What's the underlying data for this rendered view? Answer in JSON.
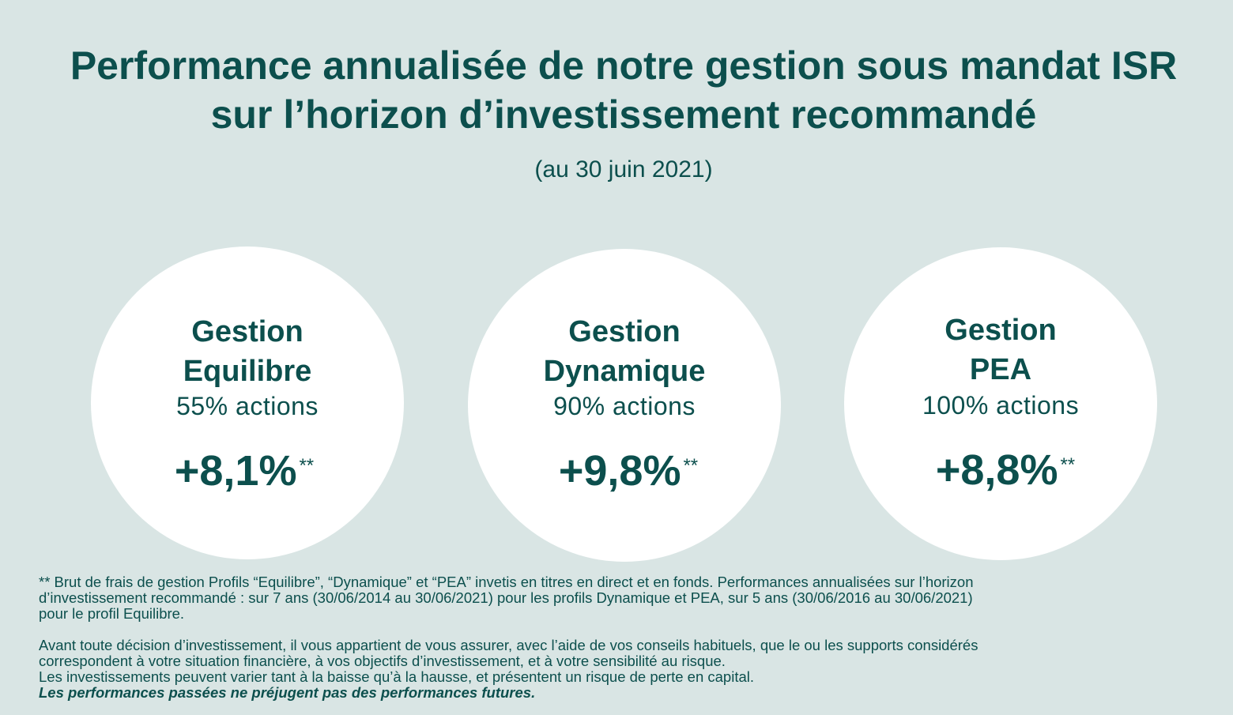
{
  "colors": {
    "background": "#d9e5e4",
    "primary_text": "#0c4f4d",
    "circle_fill": "#ffffff"
  },
  "header": {
    "title_line_1": "Performance annualisée de notre gestion sous mandat ISR",
    "title_line_2": "sur l’horizon d’investissement recommandé",
    "date_note": "(au 30 juin 2021)"
  },
  "profiles": [
    {
      "name_line_1": "Gestion",
      "name_line_2": "Equilibre",
      "allocation": "55% actions",
      "performance": "+8,1%",
      "marker": "**"
    },
    {
      "name_line_1": "Gestion",
      "name_line_2": "Dynamique",
      "allocation": "90% actions",
      "performance": "+9,8%",
      "marker": "**"
    },
    {
      "name_line_1": "Gestion",
      "name_line_2": "PEA",
      "allocation": "100% actions",
      "performance": "+8,8%",
      "marker": "**"
    }
  ],
  "footnotes": {
    "fees_lines": [
      "** Brut de frais de gestion Profils “Equilibre”, “Dynamique” et “PEA” invetis en titres en direct et en fonds. Performances annualisées sur l’horizon",
      "d’investissement recommandé :  sur 7 ans (30/06/2014 au 30/06/2021) pour les profils Dynamique et PEA, sur 5 ans (30/06/2016 au 30/06/2021)",
      "pour le profil Equilibre."
    ],
    "disclaimer_lines": [
      "Avant toute décision d’investissement, il vous appartient de vous assurer, avec l’aide de vos conseils habituels, que le ou les supports considérés",
      "correspondent à votre situation financière, à vos objectifs d’investissement, et à votre sensibilité au risque.",
      "Les investissements peuvent varier tant à la baisse qu’à la hausse, et présentent un risque de perte en capital."
    ],
    "emphasis": "Les performances passées ne préjugent pas des performances futures."
  }
}
